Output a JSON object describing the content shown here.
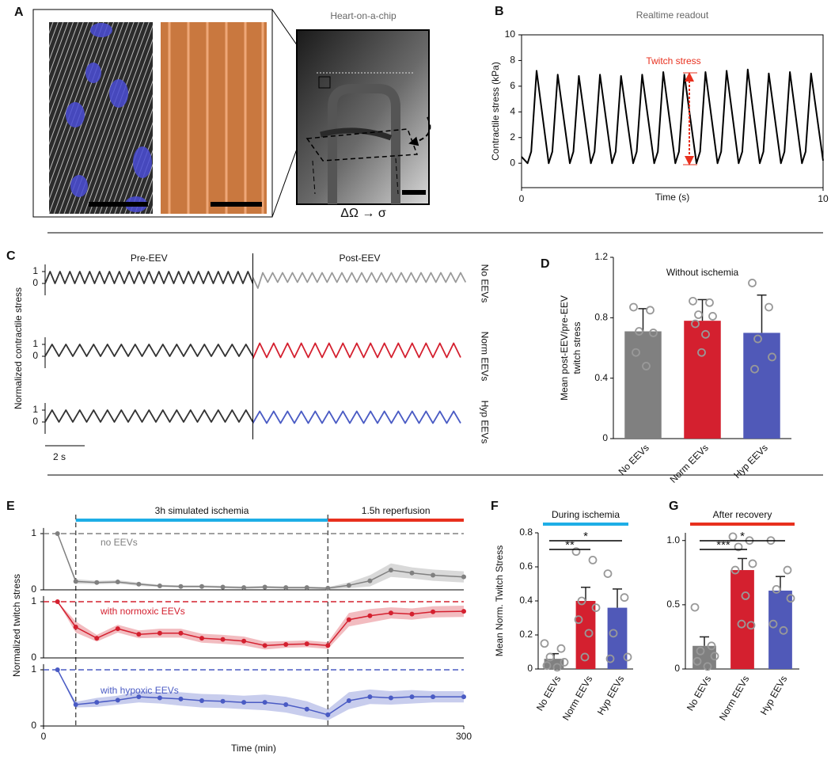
{
  "panel_a": {
    "label": "A",
    "title": "Heart-on-a-chip",
    "caption": "ΔΩ → σ"
  },
  "chart_data": [
    {
      "type": "line",
      "panel": "B",
      "title": "Realtime readout",
      "xlabel": "Time (s)",
      "ylabel": "Contractile stress (kPa)",
      "annotation": "Twitch stress",
      "color": "#000000",
      "x": [
        0,
        0.2,
        0.32,
        0.5,
        0.9,
        1.02,
        1.2,
        1.6,
        1.72,
        1.9,
        2.3,
        2.42,
        2.6,
        3.0,
        3.12,
        3.3,
        3.7,
        3.82,
        4.0,
        4.4,
        4.52,
        4.7,
        5.1,
        5.22,
        5.4,
        5.8,
        5.92,
        6.1,
        6.5,
        6.62,
        6.8,
        7.2,
        7.32,
        7.5,
        7.9,
        8.02,
        8.2,
        8.6,
        8.72,
        8.9,
        9.3,
        9.42,
        9.6,
        10
      ],
      "values": [
        0.5,
        0,
        0.9,
        7.2,
        0,
        0.9,
        6.9,
        0,
        0.9,
        6.8,
        0,
        0.9,
        6.9,
        0,
        0.9,
        6.8,
        0,
        0.9,
        6.9,
        0,
        0.9,
        7.1,
        0,
        0.9,
        6.9,
        0,
        0.9,
        7.1,
        0,
        0.9,
        7.2,
        0,
        0.9,
        7.3,
        0,
        0.9,
        7.0,
        0,
        0.9,
        7.1,
        0,
        0.9,
        7.0,
        0.2
      ],
      "xlim": [
        0,
        10
      ],
      "xticks": [
        0,
        10
      ],
      "ylim": [
        -1.9,
        10
      ],
      "yticks": [
        0,
        2,
        4,
        6,
        8,
        10
      ]
    },
    {
      "type": "traces",
      "panel": "C",
      "ylabel": "Normalized contractile stress",
      "phases": [
        "Pre-EEV",
        "Post-EEV"
      ],
      "scale_bar": "2 s",
      "xlim": [
        0,
        21.3
      ],
      "ylim": [
        -1,
        1.6
      ],
      "yticks": [
        0,
        1
      ],
      "rows": [
        {
          "label": "No EEVs",
          "series": [
            {
              "color": "#333333",
              "x": [
                0,
                0.25,
                0.5,
                0.75,
                1,
                1.25,
                1.5,
                1.75,
                2,
                2.25,
                2.5,
                2.75,
                3,
                3.25,
                3.5,
                3.75,
                4,
                4.25,
                4.5,
                4.75,
                5,
                5.25,
                5.5,
                5.75,
                6,
                6.25,
                6.5,
                6.75,
                7,
                7.25,
                7.5,
                7.75,
                8,
                8.25,
                8.5,
                8.75,
                9,
                9.25,
                9.5,
                9.75,
                10,
                10.25,
                10.5
              ],
              "values": [
                0,
                1,
                0,
                1,
                0,
                1,
                0,
                1,
                0,
                1,
                0,
                1,
                0,
                1,
                0,
                1,
                0,
                1,
                0,
                1,
                0,
                1,
                0,
                1,
                0,
                1,
                0,
                1,
                0,
                1,
                0,
                1,
                0,
                1,
                0,
                1,
                0,
                1,
                0,
                1,
                0,
                1,
                0
              ]
            },
            {
              "color": "#999999",
              "x": [
                10.5,
                10.75,
                11,
                11.25,
                11.5,
                11.75,
                12,
                12.25,
                12.5,
                12.75,
                13,
                13.25,
                13.5,
                13.75,
                14,
                14.25,
                14.5,
                14.75,
                15,
                15.25,
                15.5,
                15.75,
                16,
                16.25,
                16.5,
                16.75,
                17,
                17.25,
                17.5,
                17.75,
                18,
                18.25,
                18.5,
                18.75,
                19,
                19.25,
                19.5,
                19.75,
                20,
                20.25,
                20.5,
                20.75,
                21,
                21.25
              ],
              "values": [
                0.5,
                -0.4,
                0.9,
                0.1,
                0.9,
                0.1,
                0.9,
                0.1,
                0.9,
                0.1,
                0.9,
                0.1,
                0.9,
                0.1,
                0.9,
                0.1,
                0.9,
                0.1,
                0.9,
                0.1,
                0.9,
                0.1,
                0.9,
                0.1,
                0.9,
                0.1,
                0.9,
                0.1,
                0.9,
                0.1,
                0.9,
                0.1,
                0.9,
                0.1,
                0.9,
                0.1,
                0.9,
                0.1,
                0.9,
                0.1,
                0.9,
                0.1,
                0.9,
                0.1
              ]
            }
          ]
        },
        {
          "label": "Norm EEVs",
          "series": [
            {
              "color": "#333333",
              "x": [
                0,
                0.35,
                0.7,
                1.05,
                1.4,
                1.75,
                2.1,
                2.45,
                2.8,
                3.15,
                3.5,
                3.85,
                4.2,
                4.55,
                4.9,
                5.25,
                5.6,
                5.95,
                6.3,
                6.65,
                7.0,
                7.35,
                7.7,
                8.05,
                8.4,
                8.75,
                9.1,
                9.45,
                9.8,
                10.15,
                10.5
              ],
              "values": [
                0,
                1,
                0,
                1,
                0,
                1,
                0,
                1,
                0,
                1,
                0,
                1,
                0,
                1,
                0,
                1,
                0,
                1,
                0,
                1,
                0,
                1,
                0,
                1,
                0,
                1,
                0,
                1,
                0,
                1,
                0
              ]
            },
            {
              "color": "#d4202f",
              "x": [
                10.5,
                10.85,
                11.2,
                11.55,
                11.9,
                12.25,
                12.6,
                12.95,
                13.3,
                13.65,
                14.0,
                14.35,
                14.7,
                15.05,
                15.4,
                15.75,
                16.1,
                16.45,
                16.8,
                17.15,
                17.5,
                17.85,
                18.2,
                18.55,
                18.9,
                19.25,
                19.6,
                19.95,
                20.3,
                20.65,
                21.0
              ],
              "values": [
                -0.2,
                1.1,
                -0.1,
                1.1,
                -0.1,
                1.1,
                -0.1,
                1.1,
                -0.1,
                1.1,
                -0.1,
                1.1,
                -0.1,
                1.1,
                -0.1,
                1.1,
                -0.1,
                1.1,
                -0.1,
                1.1,
                -0.1,
                1.1,
                -0.1,
                1.1,
                -0.1,
                1.1,
                -0.1,
                1.1,
                -0.1,
                1.1,
                -0.1
              ]
            }
          ]
        },
        {
          "label": "Hyp EEVs",
          "series": [
            {
              "color": "#333333",
              "x": [
                0,
                0.35,
                0.7,
                1.05,
                1.4,
                1.75,
                2.1,
                2.45,
                2.8,
                3.15,
                3.5,
                3.85,
                4.2,
                4.55,
                4.9,
                5.25,
                5.6,
                5.95,
                6.3,
                6.65,
                7.0,
                7.35,
                7.7,
                8.05,
                8.4,
                8.75,
                9.1,
                9.45,
                9.8,
                10.15,
                10.5
              ],
              "values": [
                0,
                1,
                0,
                1,
                0,
                1,
                0,
                1,
                0,
                1,
                0,
                1,
                0,
                1,
                0,
                1,
                0,
                1,
                0,
                1,
                0,
                1,
                0,
                1,
                0,
                1,
                0,
                1,
                0,
                1,
                0
              ]
            },
            {
              "color": "#4a5bc4",
              "x": [
                10.5,
                10.85,
                11.2,
                11.55,
                11.9,
                12.25,
                12.6,
                12.95,
                13.3,
                13.65,
                14.0,
                14.35,
                14.7,
                15.05,
                15.4,
                15.75,
                16.1,
                16.45,
                16.8,
                17.15,
                17.5,
                17.85,
                18.2,
                18.55,
                18.9,
                19.25,
                19.6,
                19.95,
                20.3,
                20.65,
                21.0
              ],
              "values": [
                -0.1,
                0.9,
                -0.1,
                0.9,
                -0.1,
                0.9,
                -0.1,
                0.9,
                -0.1,
                0.9,
                -0.1,
                0.9,
                -0.1,
                0.9,
                -0.1,
                0.9,
                -0.1,
                0.9,
                -0.1,
                0.9,
                -0.1,
                0.9,
                -0.1,
                0.9,
                -0.1,
                0.9,
                -0.1,
                0.9,
                -0.1,
                0.9,
                -0.1
              ]
            }
          ]
        }
      ]
    },
    {
      "type": "bar",
      "panel": "D",
      "title": "Without ischemia",
      "ylabel": [
        "Mean post-EEV/pre-EEV",
        "twitch stress"
      ],
      "categories": [
        "No EEVs",
        "Norm EEVs",
        "Hyp EEVs"
      ],
      "values": [
        0.71,
        0.78,
        0.7
      ],
      "errors": [
        0.15,
        0.14,
        0.25
      ],
      "points": [
        [
          0.87,
          0.85,
          0.71,
          0.7,
          0.57,
          0.48
        ],
        [
          0.91,
          0.9,
          0.82,
          0.81,
          0.76,
          0.69,
          0.57
        ],
        [
          1.03,
          0.87,
          0.66,
          0.54,
          0.46
        ]
      ],
      "colors": [
        "#808080",
        "#d4202f",
        "#5059b8"
      ],
      "ylim": [
        0,
        1.2
      ],
      "yticks": [
        0,
        0.4,
        0.8,
        1.2
      ]
    },
    {
      "type": "timecourse",
      "panel": "E",
      "xlabel": "Time (min)",
      "ylabel": "Normalized twitch stress",
      "xlim": [
        0,
        300
      ],
      "xticks": [
        0,
        300
      ],
      "ylim": [
        0,
        1.1
      ],
      "yticks": [
        0,
        1
      ],
      "reference": 1,
      "periods": [
        {
          "label": "3h simulated ischemia",
          "color": "#1eaee6",
          "start": 23,
          "end": 203
        },
        {
          "label": "1.5h reperfusion",
          "color": "#e8301e",
          "start": 203,
          "end": 300
        }
      ],
      "x": [
        10,
        23,
        38,
        53,
        68,
        83,
        98,
        113,
        128,
        143,
        158,
        173,
        188,
        203,
        218,
        233,
        248,
        263,
        278,
        300
      ],
      "series": [
        {
          "name": "no EEVs",
          "color": "#808080",
          "values": [
            1,
            0.15,
            0.13,
            0.14,
            0.1,
            0.07,
            0.06,
            0.06,
            0.05,
            0.04,
            0.05,
            0.04,
            0.04,
            0.03,
            0.08,
            0.16,
            0.35,
            0.3,
            0.26,
            0.23
          ],
          "errors": [
            0,
            0.04,
            0.03,
            0.03,
            0.03,
            0.02,
            0.02,
            0.02,
            0.02,
            0.02,
            0.02,
            0.02,
            0.02,
            0.02,
            0.05,
            0.1,
            0.12,
            0.1,
            0.1,
            0.1
          ]
        },
        {
          "name": "with normoxic EEVs",
          "color": "#d4202f",
          "values": [
            1,
            0.55,
            0.35,
            0.52,
            0.42,
            0.44,
            0.44,
            0.35,
            0.33,
            0.3,
            0.22,
            0.24,
            0.25,
            0.22,
            0.68,
            0.75,
            0.8,
            0.78,
            0.82,
            0.83
          ],
          "errors": [
            0,
            0.1,
            0.06,
            0.07,
            0.07,
            0.08,
            0.08,
            0.08,
            0.08,
            0.08,
            0.07,
            0.06,
            0.06,
            0.06,
            0.12,
            0.12,
            0.1,
            0.1,
            0.1,
            0.1
          ]
        },
        {
          "name": "with hypoxic EEVs",
          "color": "#4a5bc4",
          "values": [
            1,
            0.38,
            0.42,
            0.46,
            0.52,
            0.5,
            0.48,
            0.45,
            0.44,
            0.42,
            0.42,
            0.38,
            0.3,
            0.2,
            0.45,
            0.52,
            0.5,
            0.52,
            0.52,
            0.52
          ],
          "errors": [
            0,
            0.05,
            0.08,
            0.08,
            0.1,
            0.1,
            0.12,
            0.12,
            0.12,
            0.12,
            0.14,
            0.14,
            0.14,
            0.1,
            0.15,
            0.13,
            0.12,
            0.12,
            0.1,
            0.1
          ]
        }
      ]
    },
    {
      "type": "bar",
      "panel": "F",
      "title": "During ischemia",
      "title_color": "#1eaee6",
      "significance": [
        "**",
        "*"
      ],
      "ylabel": [
        "Mean Norm. Twitch Stress"
      ],
      "categories": [
        "No EEVs",
        "Norm EEVs",
        "Hyp EEVs"
      ],
      "values": [
        0.06,
        0.4,
        0.36
      ],
      "errors": [
        0.03,
        0.08,
        0.11
      ],
      "points": [
        [
          0.15,
          0.12,
          0.07,
          0.04,
          0.02,
          0.01
        ],
        [
          0.69,
          0.64,
          0.4,
          0.36,
          0.29,
          0.21,
          0.07
        ],
        [
          0.56,
          0.42,
          0.21,
          0.07,
          0.06
        ]
      ],
      "colors": [
        "#808080",
        "#d4202f",
        "#5059b8"
      ],
      "ylim": [
        0,
        0.8
      ],
      "yticks": [
        0,
        0.2,
        0.4,
        0.6,
        0.8
      ]
    },
    {
      "type": "bar",
      "panel": "G",
      "title": "After recovery",
      "title_color": "#e8301e",
      "significance": [
        "***",
        "*"
      ],
      "categories": [
        "No EEVs",
        "Norm EEVs",
        "Hyp EEVs"
      ],
      "values": [
        0.18,
        0.77,
        0.61
      ],
      "errors": [
        0.07,
        0.09,
        0.11
      ],
      "points": [
        [
          0.48,
          0.18,
          0.14,
          0.1,
          0.06,
          0.02
        ],
        [
          1.03,
          1.0,
          0.95,
          0.82,
          0.77,
          0.57,
          0.35,
          0.34
        ],
        [
          1.0,
          0.77,
          0.62,
          0.55,
          0.35,
          0.3
        ]
      ],
      "colors": [
        "#808080",
        "#d4202f",
        "#5059b8"
      ],
      "ylim": [
        0,
        1.06
      ],
      "yticks": [
        0,
        0.5,
        {
          "value": 1,
          "label": "1.0"
        }
      ]
    }
  ]
}
